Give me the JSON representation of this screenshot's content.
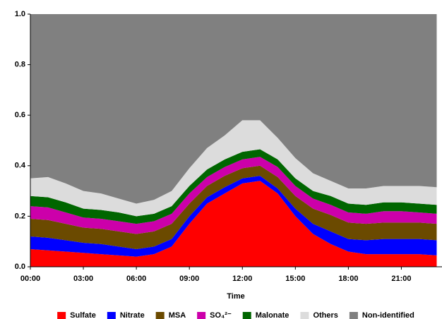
{
  "chart_data": {
    "type": "stacked_area",
    "x_label": "Time",
    "x": [
      0,
      1,
      2,
      3,
      4,
      5,
      6,
      7,
      8,
      9,
      10,
      11,
      12,
      13,
      14,
      15,
      16,
      17,
      18,
      19,
      20,
      21,
      22,
      23
    ],
    "xlim": [
      0,
      23.3
    ],
    "xticks": [
      {
        "value": 0,
        "label": "00:00"
      },
      {
        "value": 3,
        "label": "03:00"
      },
      {
        "value": 6,
        "label": "06:00"
      },
      {
        "value": 9,
        "label": "09:00"
      },
      {
        "value": 12,
        "label": "12:00"
      },
      {
        "value": 15,
        "label": "15:00"
      },
      {
        "value": 18,
        "label": "18:00"
      },
      {
        "value": 21,
        "label": "21:00"
      }
    ],
    "ylim": [
      0,
      1
    ],
    "yticks": [
      {
        "value": 0,
        "label": "0.0"
      },
      0.2,
      0.4,
      0.6,
      0.8,
      {
        "value": 1,
        "label": "1.0"
      }
    ],
    "legend": "bottom",
    "series": [
      {
        "name": "Sulfate",
        "color": "#ff0000",
        "values": [
          0.07,
          0.065,
          0.06,
          0.055,
          0.05,
          0.045,
          0.04,
          0.05,
          0.08,
          0.17,
          0.25,
          0.29,
          0.33,
          0.34,
          0.29,
          0.2,
          0.13,
          0.09,
          0.06,
          0.05,
          0.05,
          0.05,
          0.05,
          0.045
        ]
      },
      {
        "name": "Nitrate",
        "color": "#0000ff",
        "values": [
          0.05,
          0.05,
          0.045,
          0.04,
          0.04,
          0.035,
          0.03,
          0.03,
          0.03,
          0.03,
          0.025,
          0.025,
          0.02,
          0.02,
          0.02,
          0.03,
          0.04,
          0.05,
          0.05,
          0.055,
          0.06,
          0.06,
          0.06,
          0.06
        ]
      },
      {
        "name": "MSA",
        "color": "#6b4a00",
        "values": [
          0.07,
          0.07,
          0.065,
          0.06,
          0.06,
          0.06,
          0.06,
          0.06,
          0.06,
          0.05,
          0.045,
          0.045,
          0.04,
          0.04,
          0.045,
          0.05,
          0.06,
          0.065,
          0.065,
          0.065,
          0.065,
          0.065,
          0.065,
          0.065
        ]
      },
      {
        "name": "SO₄²⁻",
        "color": "#cc00aa",
        "values": [
          0.05,
          0.05,
          0.045,
          0.04,
          0.04,
          0.04,
          0.04,
          0.04,
          0.04,
          0.04,
          0.035,
          0.035,
          0.035,
          0.035,
          0.04,
          0.04,
          0.04,
          0.04,
          0.04,
          0.04,
          0.045,
          0.045,
          0.04,
          0.04
        ]
      },
      {
        "name": "Malonate",
        "color": "#006600",
        "values": [
          0.04,
          0.04,
          0.04,
          0.035,
          0.035,
          0.035,
          0.03,
          0.03,
          0.03,
          0.03,
          0.03,
          0.03,
          0.03,
          0.03,
          0.03,
          0.03,
          0.03,
          0.035,
          0.035,
          0.035,
          0.035,
          0.035,
          0.035,
          0.035
        ]
      },
      {
        "name": "Others",
        "color": "#dcdcdc",
        "values": [
          0.07,
          0.08,
          0.075,
          0.07,
          0.065,
          0.055,
          0.05,
          0.055,
          0.06,
          0.07,
          0.085,
          0.095,
          0.125,
          0.115,
          0.085,
          0.08,
          0.07,
          0.06,
          0.06,
          0.065,
          0.065,
          0.065,
          0.07,
          0.07
        ]
      },
      {
        "name": "Non-identified",
        "color": "#808080",
        "values": [
          0.65,
          0.645,
          0.67,
          0.7,
          0.71,
          0.73,
          0.75,
          0.735,
          0.7,
          0.61,
          0.53,
          0.48,
          0.42,
          0.42,
          0.49,
          0.57,
          0.63,
          0.66,
          0.69,
          0.69,
          0.68,
          0.68,
          0.68,
          0.685
        ]
      }
    ]
  }
}
